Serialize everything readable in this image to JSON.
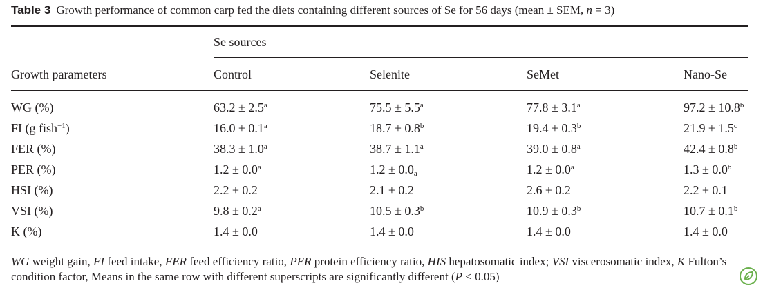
{
  "title": {
    "label": "Table 3",
    "text_before_n": "Growth performance of common carp fed the diets containing different sources of Se for 56 days (mean ± SEM,",
    "n_symbol": "n",
    "n_value": "= 3)"
  },
  "header": {
    "group_label": "Se sources",
    "row_label": "Growth parameters",
    "columns": [
      "Control",
      "Selenite",
      "SeMet",
      "Nano-Se"
    ]
  },
  "rows": [
    {
      "param": "WG (%)",
      "cells": [
        {
          "v": "63.2 ± 2.5",
          "sup": "a"
        },
        {
          "v": "75.5 ± 5.5",
          "sup": "a"
        },
        {
          "v": "77.8 ± 3.1",
          "sup": "a"
        },
        {
          "v": "97.2 ± 10.8",
          "sup": "b"
        }
      ]
    },
    {
      "param": "FI (g fish",
      "param_sup": "−1",
      "param_tail": ")",
      "cells": [
        {
          "v": "16.0 ± 0.1",
          "sup": "a"
        },
        {
          "v": "18.7 ± 0.8",
          "sup": "b"
        },
        {
          "v": "19.4 ± 0.3",
          "sup": "b"
        },
        {
          "v": "21.9 ± 1.5",
          "sup": "c"
        }
      ]
    },
    {
      "param": "FER (%)",
      "cells": [
        {
          "v": "38.3 ± 1.0",
          "sup": "a"
        },
        {
          "v": "38.7 ± 1.1",
          "sup": "a"
        },
        {
          "v": "39.0 ± 0.8",
          "sup": "a"
        },
        {
          "v": "42.4 ± 0.8",
          "sup": "b"
        }
      ]
    },
    {
      "param": "PER (%)",
      "cells": [
        {
          "v": "1.2 ± 0.0",
          "sup": "a"
        },
        {
          "v": "1.2 ± 0.0",
          "sub": "a"
        },
        {
          "v": "1.2 ± 0.0",
          "sup": "a"
        },
        {
          "v": "1.3 ± 0.0",
          "sup": "b"
        }
      ]
    },
    {
      "param": "HSI (%)",
      "cells": [
        {
          "v": "2.2 ± 0.2"
        },
        {
          "v": "2.1 ± 0.2"
        },
        {
          "v": "2.6 ± 0.2"
        },
        {
          "v": "2.2 ± 0.1"
        }
      ]
    },
    {
      "param": "VSI (%)",
      "cells": [
        {
          "v": "9.8 ± 0.2",
          "sup": "a"
        },
        {
          "v": "10.5 ± 0.3",
          "sup": "b"
        },
        {
          "v": "10.9 ± 0.3",
          "sup": "b"
        },
        {
          "v": "10.7 ± 0.1",
          "sup": "b"
        }
      ]
    },
    {
      "param": "K (%)",
      "cells": [
        {
          "v": "1.4 ± 0.0"
        },
        {
          "v": "1.4 ± 0.0"
        },
        {
          "v": "1.4 ± 0.0"
        },
        {
          "v": "1.4 ± 0.0"
        }
      ]
    }
  ],
  "footnote": [
    {
      "abbr": "WG",
      "desc": " weight gain, "
    },
    {
      "abbr": "FI",
      "desc": " feed intake, "
    },
    {
      "abbr": "FER",
      "desc": " feed efficiency ratio, "
    },
    {
      "abbr": "PER",
      "desc": " protein efficiency ratio, "
    },
    {
      "abbr": "HIS",
      "desc": " hepatosomatic index; "
    },
    {
      "abbr": "VSI",
      "desc": " viscerosomatic index, "
    },
    {
      "abbr": "K",
      "desc": " Fulton’s condition factor, Means in the same row with different superscripts are significantly different ("
    },
    {
      "abbr": "P",
      "desc": " < 0.05)"
    }
  ],
  "badge_icon": "springer-leaf-badge-icon",
  "colors": {
    "text": "#231f20",
    "badge": "#6ab04c"
  }
}
